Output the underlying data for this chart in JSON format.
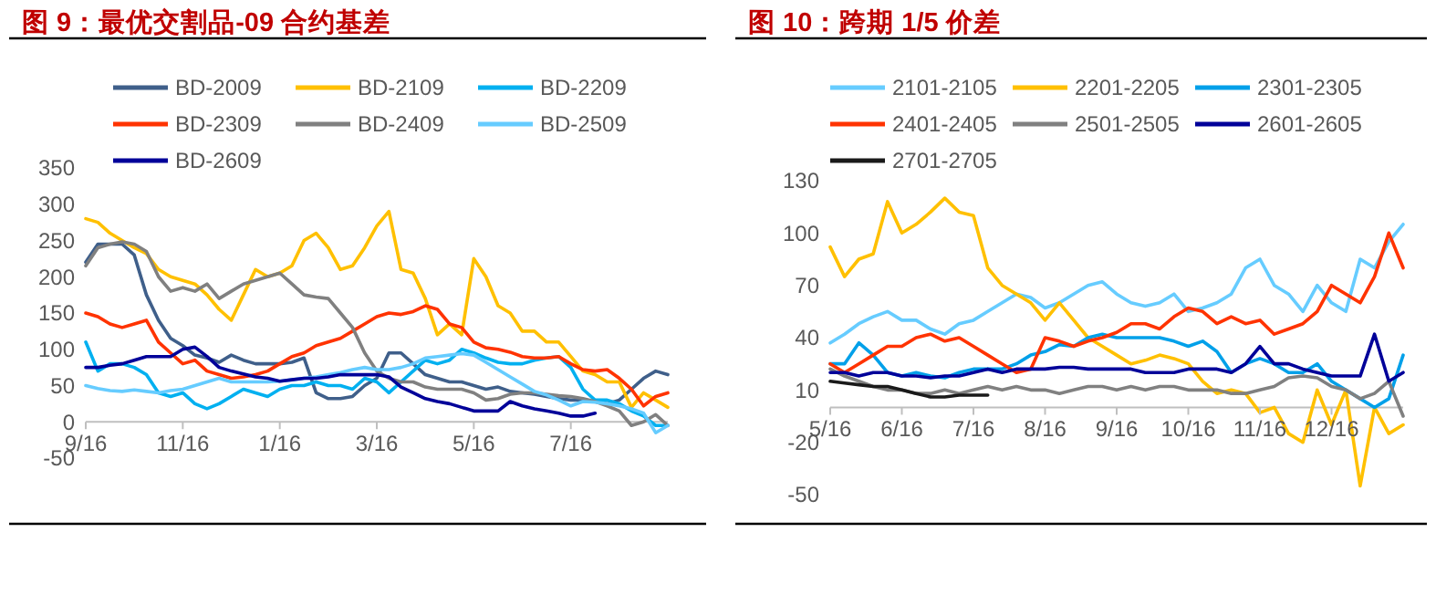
{
  "chart_data": [
    {
      "type": "line",
      "title": "图 9：最优交割品-09 合约基差",
      "legend": "top",
      "grid": false,
      "categories": [
        "9/16",
        null,
        null,
        null,
        null,
        null,
        null,
        null,
        "11/16",
        null,
        null,
        null,
        null,
        null,
        null,
        null,
        "1/16",
        null,
        null,
        null,
        null,
        null,
        null,
        null,
        "3/16",
        null,
        null,
        null,
        null,
        null,
        null,
        null,
        "5/16",
        null,
        null,
        null,
        null,
        null,
        null,
        null,
        "7/16",
        null,
        null,
        null,
        null,
        null,
        null,
        null,
        null
      ],
      "ylim": [
        -50,
        350
      ],
      "yticks": [
        -50,
        0,
        50,
        100,
        150,
        200,
        250,
        300,
        350
      ],
      "series": [
        {
          "name": "BD-2009",
          "color": "#3f5f8a",
          "values": [
            220,
            245,
            245,
            245,
            230,
            175,
            140,
            115,
            105,
            92,
            88,
            82,
            92,
            85,
            80,
            80,
            80,
            82,
            88,
            40,
            32,
            32,
            35,
            50,
            60,
            95,
            95,
            80,
            65,
            60,
            55,
            55,
            50,
            45,
            48,
            42,
            40,
            38,
            35,
            32,
            30,
            30,
            28,
            25,
            30,
            45,
            60,
            70,
            65
          ]
        },
        {
          "name": "BD-2109",
          "color": "#ffc000",
          "values": [
            280,
            275,
            260,
            250,
            240,
            232,
            210,
            200,
            195,
            190,
            175,
            155,
            140,
            175,
            210,
            200,
            205,
            215,
            250,
            260,
            240,
            210,
            215,
            240,
            270,
            290,
            210,
            205,
            170,
            120,
            135,
            120,
            225,
            200,
            160,
            150,
            125,
            125,
            110,
            110,
            90,
            70,
            65,
            55,
            55,
            20,
            40,
            30,
            20
          ]
        },
        {
          "name": "BD-2209",
          "color": "#00b0f0",
          "values": [
            110,
            70,
            80,
            80,
            75,
            65,
            40,
            35,
            40,
            25,
            18,
            25,
            35,
            45,
            40,
            35,
            45,
            50,
            50,
            55,
            50,
            50,
            45,
            60,
            55,
            40,
            55,
            70,
            85,
            80,
            85,
            100,
            95,
            88,
            82,
            80,
            80,
            85,
            88,
            90,
            75,
            45,
            30,
            30,
            25,
            15,
            8,
            -5,
            -5
          ]
        },
        {
          "name": "BD-2309",
          "color": "#ff3300",
          "values": [
            150,
            145,
            135,
            130,
            135,
            140,
            110,
            95,
            80,
            85,
            70,
            65,
            60,
            62,
            65,
            70,
            80,
            90,
            95,
            105,
            110,
            115,
            125,
            135,
            145,
            150,
            148,
            152,
            160,
            155,
            135,
            130,
            110,
            102,
            100,
            96,
            90,
            88,
            88,
            90,
            80,
            72,
            70,
            72,
            60,
            45,
            22,
            35,
            40
          ]
        },
        {
          "name": "BD-2409",
          "color": "#808080",
          "values": [
            215,
            240,
            245,
            248,
            245,
            235,
            200,
            180,
            185,
            180,
            190,
            170,
            180,
            190,
            195,
            200,
            205,
            190,
            175,
            172,
            170,
            150,
            130,
            95,
            70,
            60,
            55,
            55,
            48,
            45,
            45,
            45,
            40,
            30,
            32,
            38,
            40,
            40,
            38,
            36,
            35,
            32,
            28,
            22,
            15,
            -5,
            0,
            10,
            -5
          ]
        },
        {
          "name": "BD-2509",
          "color": "#66ccff",
          "values": [
            50,
            46,
            43,
            42,
            44,
            42,
            40,
            43,
            45,
            50,
            55,
            60,
            55,
            55,
            55,
            55,
            56,
            58,
            60,
            62,
            65,
            68,
            72,
            75,
            72,
            72,
            75,
            80,
            88,
            90,
            92,
            94,
            92,
            82,
            72,
            62,
            52,
            42,
            37,
            30,
            22,
            28,
            27,
            25,
            22,
            18,
            12,
            -15,
            -5
          ]
        },
        {
          "name": "BD-2609",
          "color": "#000099",
          "values": [
            75,
            75,
            78,
            80,
            85,
            90,
            90,
            90,
            100,
            103,
            90,
            75,
            70,
            66,
            62,
            60,
            56,
            58,
            60,
            60,
            62,
            65,
            65,
            65,
            65,
            62,
            48,
            40,
            32,
            28,
            25,
            20,
            15,
            15,
            15,
            28,
            22,
            18,
            15,
            12,
            8,
            8,
            12,
            null,
            null,
            null,
            null,
            null,
            null
          ]
        }
      ]
    },
    {
      "type": "line",
      "title": "图 10：跨期 1/5 价差",
      "legend": "top",
      "grid": false,
      "categories": [
        "5/16",
        null,
        null,
        null,
        null,
        "6/16",
        null,
        null,
        null,
        null,
        "7/16",
        null,
        null,
        null,
        null,
        "8/16",
        null,
        null,
        null,
        null,
        "9/16",
        null,
        null,
        null,
        null,
        "10/16",
        null,
        null,
        null,
        null,
        "11/16",
        null,
        null,
        null,
        null,
        "12/16",
        null,
        null,
        null,
        null,
        null
      ],
      "ylim": [
        -50,
        130
      ],
      "yticks": [
        -50,
        -20,
        10,
        40,
        70,
        100,
        130
      ],
      "series": [
        {
          "name": "2101-2105",
          "color": "#66ccff",
          "values": [
            37,
            42,
            48,
            52,
            55,
            50,
            50,
            45,
            42,
            48,
            50,
            55,
            60,
            65,
            63,
            57,
            60,
            65,
            70,
            72,
            65,
            60,
            58,
            60,
            65,
            55,
            57,
            60,
            65,
            80,
            85,
            70,
            65,
            55,
            70,
            60,
            55,
            85,
            80,
            95,
            105
          ]
        },
        {
          "name": "2201-2205",
          "color": "#ffc000",
          "values": [
            92,
            75,
            85,
            88,
            118,
            100,
            105,
            112,
            120,
            112,
            110,
            80,
            70,
            65,
            60,
            50,
            60,
            50,
            40,
            35,
            30,
            25,
            27,
            30,
            28,
            25,
            15,
            8,
            10,
            8,
            -3,
            0,
            -15,
            -20,
            10,
            -10,
            10,
            -45,
            0,
            -15,
            -10
          ]
        },
        {
          "name": "2301-2305",
          "color": "#00a0e9",
          "values": [
            25,
            25,
            37,
            30,
            20,
            18,
            20,
            18,
            17,
            20,
            22,
            22,
            22,
            25,
            30,
            32,
            36,
            35,
            40,
            42,
            40,
            40,
            40,
            40,
            38,
            35,
            38,
            32,
            20,
            25,
            28,
            25,
            20,
            20,
            25,
            15,
            10,
            5,
            0,
            5,
            30
          ]
        },
        {
          "name": "2401-2405",
          "color": "#ff3300",
          "values": [
            25,
            20,
            25,
            30,
            35,
            35,
            40,
            42,
            38,
            40,
            35,
            30,
            25,
            20,
            22,
            40,
            38,
            35,
            38,
            40,
            43,
            48,
            48,
            45,
            52,
            57,
            55,
            48,
            52,
            48,
            50,
            42,
            45,
            48,
            55,
            70,
            65,
            60,
            75,
            100,
            80
          ]
        },
        {
          "name": "2501-2505",
          "color": "#808080",
          "values": [
            22,
            18,
            15,
            12,
            10,
            10,
            8,
            8,
            10,
            8,
            10,
            12,
            10,
            12,
            10,
            10,
            8,
            10,
            12,
            12,
            10,
            12,
            10,
            12,
            12,
            10,
            10,
            10,
            8,
            8,
            10,
            12,
            17,
            18,
            17,
            12,
            10,
            5,
            8,
            15,
            -5
          ]
        },
        {
          "name": "2601-2605",
          "color": "#000099",
          "values": [
            20,
            20,
            18,
            20,
            20,
            18,
            18,
            17,
            18,
            18,
            20,
            22,
            20,
            22,
            22,
            22,
            23,
            23,
            22,
            22,
            22,
            22,
            20,
            20,
            20,
            22,
            22,
            22,
            20,
            25,
            35,
            25,
            25,
            22,
            20,
            18,
            18,
            18,
            42,
            15,
            20
          ]
        },
        {
          "name": "2701-2705",
          "color": "#1a1a1a",
          "values": [
            15,
            14,
            13,
            12,
            12,
            10,
            8,
            6,
            6,
            7,
            7,
            7,
            null,
            null,
            null,
            null,
            null,
            null,
            null,
            null,
            null,
            null,
            null,
            null,
            null,
            null,
            null,
            null,
            null,
            null,
            null,
            null,
            null,
            null,
            null,
            null,
            null,
            null,
            null,
            null,
            null
          ]
        }
      ]
    }
  ]
}
